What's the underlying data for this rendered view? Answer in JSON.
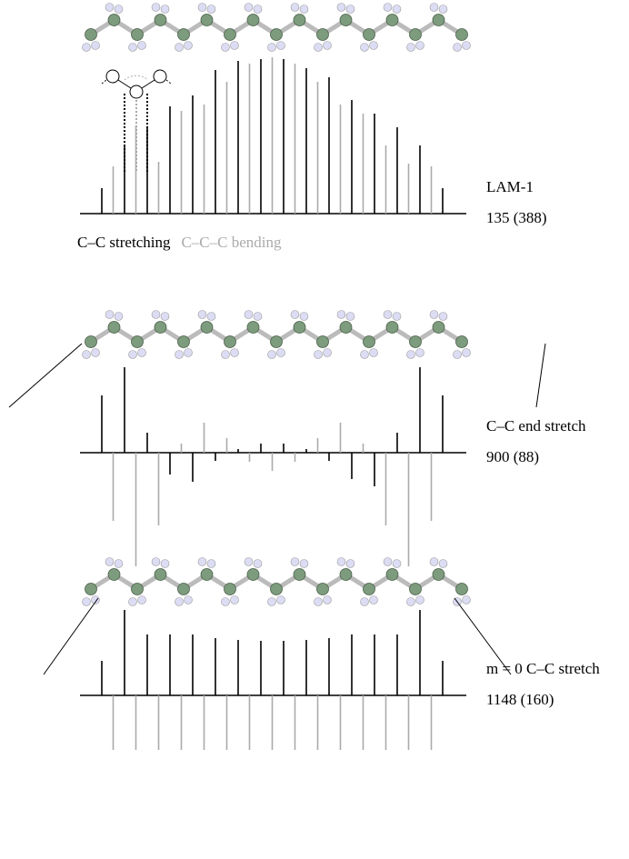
{
  "chart_data": [
    {
      "type": "bar",
      "label": "LAM-1",
      "frequency": "135 (388)",
      "series": [
        {
          "name": "C–C stretching",
          "color": "#000000",
          "values": [
            28,
            null,
            75,
            null,
            95,
            null,
            118,
            null,
            130,
            null,
            158,
            null,
            168,
            null,
            170,
            null,
            170,
            null,
            160,
            null,
            150,
            null,
            125,
            null,
            110,
            null,
            95,
            null,
            75,
            null,
            28
          ]
        },
        {
          "name": "C–C–C bending",
          "color": "#aaaaaa",
          "values": [
            null,
            52,
            null,
            97,
            null,
            57,
            null,
            113,
            null,
            120,
            null,
            145,
            null,
            165,
            null,
            172,
            null,
            165,
            null,
            145,
            null,
            120,
            null,
            110,
            null,
            75,
            null,
            55,
            null,
            52,
            null
          ]
        }
      ]
    },
    {
      "type": "bar",
      "label": "C–C end stretch",
      "frequency": "900 (88)",
      "series": [
        {
          "color": "#000000",
          "values": [
            63,
            null,
            94,
            null,
            22,
            null,
            -24,
            null,
            -32,
            null,
            -9,
            null,
            4,
            null,
            10,
            null,
            10,
            null,
            4,
            null,
            -9,
            null,
            -29,
            null,
            -37,
            null,
            22,
            null,
            94,
            null,
            63
          ]
        },
        {
          "color": "#aaaaaa",
          "values": [
            null,
            -75,
            null,
            -125,
            null,
            -80,
            null,
            10,
            null,
            33,
            null,
            16,
            null,
            -10,
            null,
            -20,
            null,
            -10,
            null,
            16,
            null,
            33,
            null,
            10,
            null,
            -80,
            null,
            -125,
            null,
            -75,
            null
          ]
        }
      ]
    },
    {
      "type": "bar",
      "label": "m = 0 C–C stretch",
      "frequency": "1148 (160)",
      "series": [
        {
          "color": "#000000",
          "values": [
            38,
            null,
            94,
            null,
            67,
            null,
            67,
            null,
            67,
            null,
            63,
            null,
            61,
            null,
            60,
            null,
            60,
            null,
            61,
            null,
            63,
            null,
            67,
            null,
            67,
            null,
            67,
            null,
            94,
            null,
            38
          ]
        },
        {
          "color": "#aaaaaa",
          "values": [
            null,
            -60,
            null,
            -60,
            null,
            -60,
            null,
            -60,
            null,
            -60,
            null,
            -60,
            null,
            -60,
            null,
            -60,
            null,
            -60,
            null,
            -60,
            null,
            -60,
            null,
            -60,
            null,
            -60,
            null,
            -60,
            null,
            -60,
            null
          ]
        }
      ]
    }
  ]
}
